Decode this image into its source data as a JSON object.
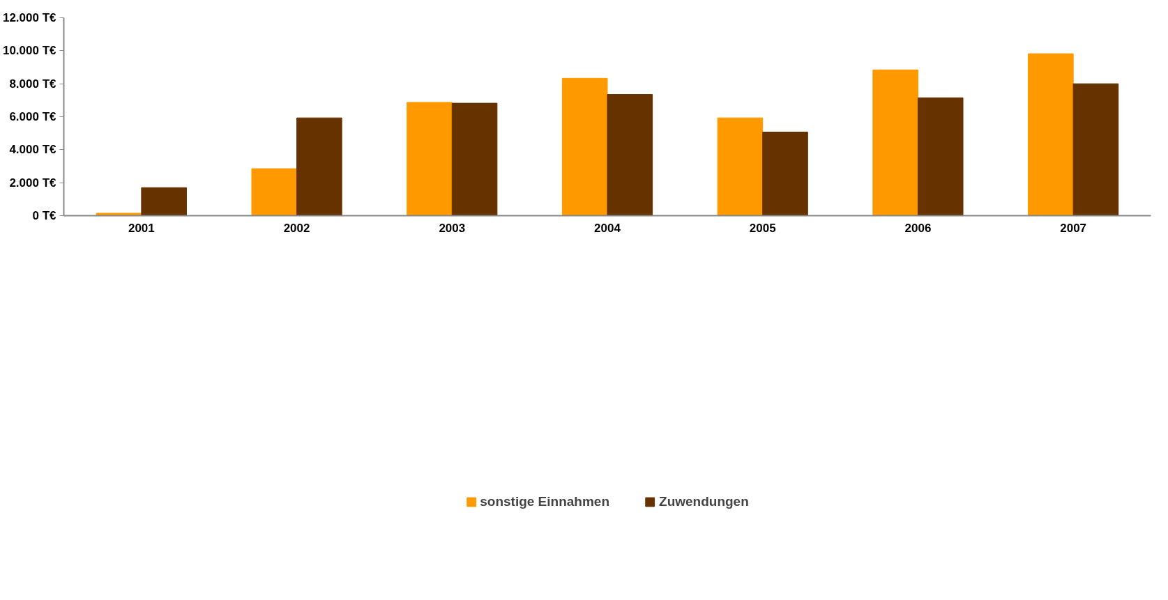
{
  "chart_data": {
    "type": "bar",
    "categories": [
      "2001",
      "2002",
      "2003",
      "2004",
      "2005",
      "2006",
      "2007"
    ],
    "series": [
      {
        "name": "sonstige Einnahmen",
        "color": "#ff9900",
        "values": [
          150,
          2850,
          6870,
          8330,
          5930,
          8840,
          9820
        ]
      },
      {
        "name": "Zuwendungen",
        "color": "#663300",
        "values": [
          1700,
          5930,
          6820,
          7350,
          5070,
          7150,
          8000
        ]
      }
    ],
    "ylim": [
      0,
      12000
    ],
    "yticks": [
      {
        "value": 0,
        "label": "0 T€"
      },
      {
        "value": 2000,
        "label": "2.000 T€"
      },
      {
        "value": 4000,
        "label": "4.000 T€"
      },
      {
        "value": 6000,
        "label": "6.000 T€"
      },
      {
        "value": 8000,
        "label": "8.000 T€"
      },
      {
        "value": 10000,
        "label": "10.000 T€"
      },
      {
        "value": 12000,
        "label": "12.000 T€"
      }
    ],
    "grid": false,
    "legend": "bottom"
  }
}
